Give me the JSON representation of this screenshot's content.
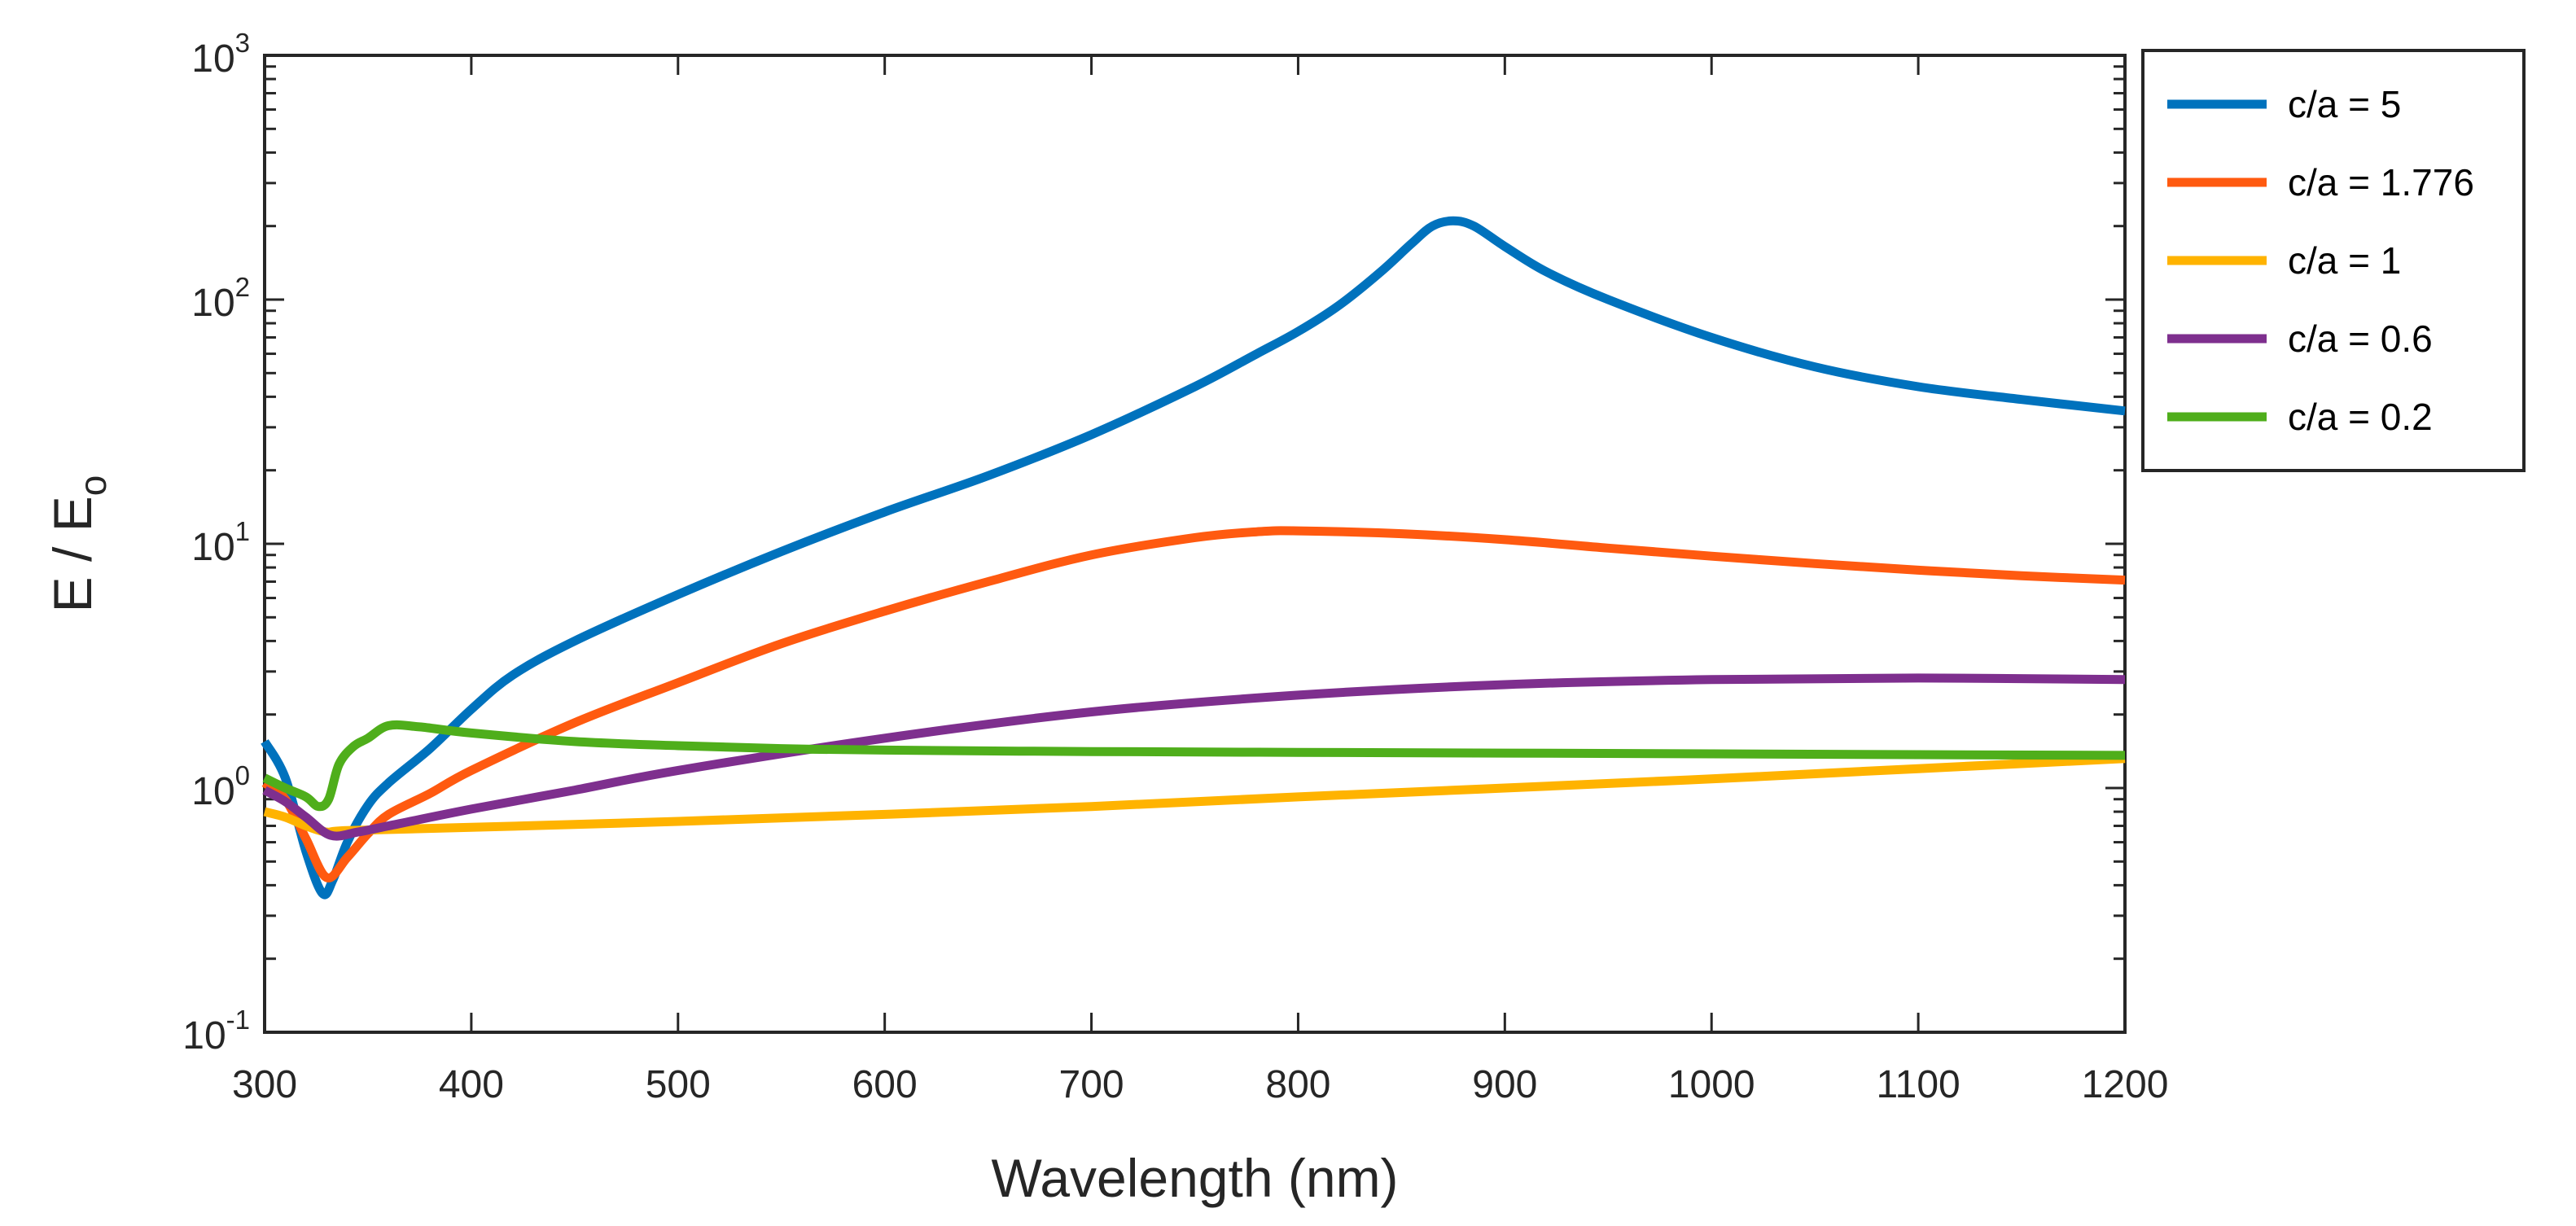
{
  "chart_data": {
    "type": "line",
    "xlabel": "Wavelength (nm)",
    "ylabel_base": "E / E",
    "ylabel_sub": "o",
    "yscale": "log",
    "xlim": [
      300,
      1200
    ],
    "ylim": [
      0.1,
      1000
    ],
    "x_ticks": [
      "300",
      "400",
      "500",
      "600",
      "700",
      "800",
      "900",
      "1000",
      "1100",
      "1200"
    ],
    "y_ticks": [
      {
        "base": "10",
        "exp": "-1"
      },
      {
        "base": "10",
        "exp": "0"
      },
      {
        "base": "10",
        "exp": "1"
      },
      {
        "base": "10",
        "exp": "2"
      },
      {
        "base": "10",
        "exp": "3"
      }
    ],
    "legend_position": "outside-top-right",
    "series": [
      {
        "name": "c/a = 5",
        "color": "#0072BD",
        "points": [
          [
            300,
            1.55
          ],
          [
            310,
            1.1
          ],
          [
            320,
            0.55
          ],
          [
            328,
            0.37
          ],
          [
            333,
            0.42
          ],
          [
            340,
            0.6
          ],
          [
            350,
            0.85
          ],
          [
            360,
            1.05
          ],
          [
            380,
            1.45
          ],
          [
            400,
            2.1
          ],
          [
            420,
            2.9
          ],
          [
            450,
            4.0
          ],
          [
            500,
            6.2
          ],
          [
            550,
            9.3
          ],
          [
            600,
            13.5
          ],
          [
            650,
            19
          ],
          [
            700,
            28
          ],
          [
            750,
            44
          ],
          [
            780,
            60
          ],
          [
            800,
            74
          ],
          [
            820,
            95
          ],
          [
            840,
            130
          ],
          [
            855,
            170
          ],
          [
            865,
            200
          ],
          [
            875,
            210
          ],
          [
            885,
            200
          ],
          [
            900,
            165
          ],
          [
            920,
            130
          ],
          [
            950,
            100
          ],
          [
            1000,
            70
          ],
          [
            1050,
            53
          ],
          [
            1100,
            44
          ],
          [
            1150,
            39
          ],
          [
            1200,
            35
          ]
        ]
      },
      {
        "name": "c/a = 1.776",
        "color": "#FF5A10",
        "points": [
          [
            300,
            1.05
          ],
          [
            310,
            0.9
          ],
          [
            320,
            0.62
          ],
          [
            330,
            0.43
          ],
          [
            340,
            0.52
          ],
          [
            350,
            0.65
          ],
          [
            360,
            0.78
          ],
          [
            380,
            0.95
          ],
          [
            400,
            1.18
          ],
          [
            450,
            1.85
          ],
          [
            500,
            2.7
          ],
          [
            550,
            3.9
          ],
          [
            600,
            5.3
          ],
          [
            650,
            7.0
          ],
          [
            700,
            9.0
          ],
          [
            750,
            10.6
          ],
          [
            780,
            11.2
          ],
          [
            800,
            11.3
          ],
          [
            850,
            11.0
          ],
          [
            900,
            10.4
          ],
          [
            950,
            9.6
          ],
          [
            1000,
            8.9
          ],
          [
            1050,
            8.3
          ],
          [
            1100,
            7.8
          ],
          [
            1150,
            7.4
          ],
          [
            1200,
            7.1
          ]
        ]
      },
      {
        "name": "c/a = 1",
        "color": "#FFB300",
        "points": [
          [
            300,
            0.8
          ],
          [
            310,
            0.76
          ],
          [
            320,
            0.7
          ],
          [
            330,
            0.66
          ],
          [
            340,
            0.67
          ],
          [
            400,
            0.69
          ],
          [
            500,
            0.73
          ],
          [
            600,
            0.78
          ],
          [
            700,
            0.84
          ],
          [
            800,
            0.92
          ],
          [
            900,
            1.0
          ],
          [
            1000,
            1.09
          ],
          [
            1100,
            1.2
          ],
          [
            1200,
            1.32
          ]
        ]
      },
      {
        "name": "c/a = 0.6",
        "color": "#7E2F8E",
        "points": [
          [
            300,
            0.98
          ],
          [
            310,
            0.88
          ],
          [
            320,
            0.76
          ],
          [
            332,
            0.64
          ],
          [
            345,
            0.66
          ],
          [
            360,
            0.7
          ],
          [
            400,
            0.82
          ],
          [
            450,
            0.98
          ],
          [
            500,
            1.18
          ],
          [
            600,
            1.6
          ],
          [
            700,
            2.05
          ],
          [
            800,
            2.4
          ],
          [
            900,
            2.65
          ],
          [
            1000,
            2.78
          ],
          [
            1100,
            2.82
          ],
          [
            1200,
            2.78
          ]
        ]
      },
      {
        "name": "c/a = 0.2",
        "color": "#4FAE1B",
        "points": [
          [
            300,
            1.1
          ],
          [
            310,
            1.0
          ],
          [
            320,
            0.92
          ],
          [
            326,
            0.84
          ],
          [
            331,
            0.9
          ],
          [
            336,
            1.25
          ],
          [
            343,
            1.48
          ],
          [
            350,
            1.6
          ],
          [
            360,
            1.8
          ],
          [
            375,
            1.78
          ],
          [
            400,
            1.68
          ],
          [
            450,
            1.55
          ],
          [
            500,
            1.49
          ],
          [
            550,
            1.45
          ],
          [
            600,
            1.43
          ],
          [
            700,
            1.41
          ],
          [
            800,
            1.4
          ],
          [
            900,
            1.39
          ],
          [
            1000,
            1.38
          ],
          [
            1100,
            1.37
          ],
          [
            1200,
            1.36
          ]
        ]
      }
    ]
  }
}
